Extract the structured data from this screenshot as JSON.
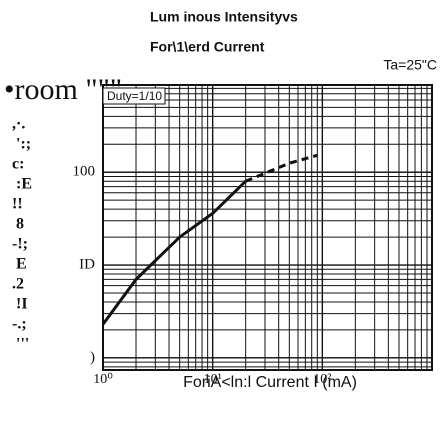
{
  "chart_data": {
    "type": "line",
    "title": "Lum inous Intensityvs",
    "subtitle": "For\\1\\erd Current",
    "condition": "Ta=25\"C",
    "annotation": "Duty=1/10",
    "x_label": "ForiA<ln:l Current  I (mA)",
    "y_label": "•room \"\"\"",
    "y_label_fragments": [
      ",·.",
      "':;",
      "c:",
      ":E",
      "!!",
      "8",
      "-!;",
      "E",
      ".2",
      "!I",
      "-.;",
      "'''"
    ],
    "xlog": true,
    "ylog": true,
    "grid": true,
    "xlim": [
      1,
      1000
    ],
    "ylim": [
      0.74,
      870
    ],
    "xticks": [
      {
        "value": 1,
        "label": "10⁰"
      },
      {
        "value": 10,
        "label": "10¹"
      },
      {
        "value": 100,
        "label": "10²"
      }
    ],
    "yticks": [
      {
        "value": 1,
        "label": ")"
      },
      {
        "value": 10,
        "label": "ID"
      },
      100
    ],
    "series": [
      {
        "color": "#111111",
        "dash": false,
        "x": [
          1,
          2,
          5,
          10,
          20
        ],
        "values": [
          2.3,
          7,
          20,
          36,
          80
        ]
      },
      {
        "color": "#111111",
        "dash": true,
        "x": [
          20,
          50,
          90
        ],
        "values": [
          80,
          125,
          152
        ]
      }
    ]
  }
}
